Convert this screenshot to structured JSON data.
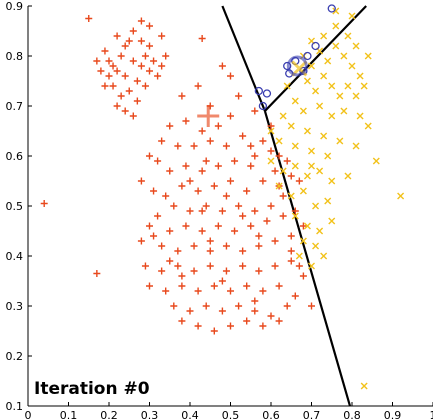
{
  "chart_data": {
    "type": "scatter",
    "title": "",
    "annotation": "Iteration #0",
    "xlabel": "",
    "ylabel": "",
    "xlim": [
      0.0,
      1.0
    ],
    "ylim": [
      0.1,
      0.9
    ],
    "xticks": [
      0.0,
      0.1,
      0.2,
      0.3,
      0.4,
      0.5,
      0.6,
      0.7,
      0.8,
      0.9,
      1.0
    ],
    "yticks": [
      0.1,
      0.2,
      0.3,
      0.4,
      0.5,
      0.6,
      0.7,
      0.8,
      0.9
    ],
    "xtick_labels": [
      "0",
      "0.1",
      "0.2",
      "0.3",
      "0.4",
      "0.5",
      "0.6",
      "0.7",
      "0.8",
      "0.9",
      "1"
    ],
    "ytick_labels": [
      "0.1",
      "0.2",
      "0.3",
      "0.4",
      "0.5",
      "0.6",
      "0.7",
      "0.8",
      "0.9"
    ],
    "grid": false,
    "colors": {
      "cluster1": "#e8491d",
      "cluster2": "#f2c21b",
      "cluster3": "#3b3fb0",
      "boundary": "#000000"
    },
    "series": [
      {
        "marker": "plus",
        "color": "#e8491d",
        "centroid": [
          0.445,
          0.68
        ],
        "points": [
          [
            0.15,
            0.875
          ],
          [
            0.19,
            0.81
          ],
          [
            0.2,
            0.79
          ],
          [
            0.21,
            0.78
          ],
          [
            0.22,
            0.77
          ],
          [
            0.23,
            0.8
          ],
          [
            0.24,
            0.76
          ],
          [
            0.25,
            0.83
          ],
          [
            0.26,
            0.79
          ],
          [
            0.27,
            0.75
          ],
          [
            0.28,
            0.78
          ],
          [
            0.29,
            0.8
          ],
          [
            0.3,
            0.77
          ],
          [
            0.31,
            0.79
          ],
          [
            0.22,
            0.84
          ],
          [
            0.24,
            0.82
          ],
          [
            0.26,
            0.85
          ],
          [
            0.28,
            0.83
          ],
          [
            0.3,
            0.82
          ],
          [
            0.21,
            0.74
          ],
          [
            0.23,
            0.72
          ],
          [
            0.25,
            0.73
          ],
          [
            0.27,
            0.71
          ],
          [
            0.2,
            0.76
          ],
          [
            0.32,
            0.76
          ],
          [
            0.33,
            0.78
          ],
          [
            0.18,
            0.77
          ],
          [
            0.17,
            0.79
          ],
          [
            0.29,
            0.74
          ],
          [
            0.24,
            0.69
          ],
          [
            0.3,
            0.86
          ],
          [
            0.28,
            0.87
          ],
          [
            0.33,
            0.84
          ],
          [
            0.34,
            0.8
          ],
          [
            0.19,
            0.74
          ],
          [
            0.22,
            0.7
          ],
          [
            0.26,
            0.68
          ],
          [
            0.43,
            0.835
          ],
          [
            0.48,
            0.78
          ],
          [
            0.5,
            0.76
          ],
          [
            0.42,
            0.74
          ],
          [
            0.38,
            0.72
          ],
          [
            0.45,
            0.7
          ],
          [
            0.52,
            0.72
          ],
          [
            0.5,
            0.68
          ],
          [
            0.47,
            0.66
          ],
          [
            0.43,
            0.65
          ],
          [
            0.39,
            0.67
          ],
          [
            0.35,
            0.66
          ],
          [
            0.33,
            0.63
          ],
          [
            0.37,
            0.62
          ],
          [
            0.41,
            0.62
          ],
          [
            0.45,
            0.63
          ],
          [
            0.49,
            0.62
          ],
          [
            0.53,
            0.64
          ],
          [
            0.55,
            0.62
          ],
          [
            0.58,
            0.63
          ],
          [
            0.6,
            0.61
          ],
          [
            0.62,
            0.6
          ],
          [
            0.64,
            0.59
          ],
          [
            0.55,
            0.58
          ],
          [
            0.51,
            0.59
          ],
          [
            0.47,
            0.58
          ],
          [
            0.43,
            0.57
          ],
          [
            0.39,
            0.58
          ],
          [
            0.35,
            0.57
          ],
          [
            0.32,
            0.59
          ],
          [
            0.3,
            0.6
          ],
          [
            0.28,
            0.55
          ],
          [
            0.31,
            0.53
          ],
          [
            0.34,
            0.52
          ],
          [
            0.38,
            0.54
          ],
          [
            0.42,
            0.53
          ],
          [
            0.46,
            0.54
          ],
          [
            0.5,
            0.55
          ],
          [
            0.54,
            0.53
          ],
          [
            0.58,
            0.55
          ],
          [
            0.62,
            0.54
          ],
          [
            0.65,
            0.56
          ],
          [
            0.67,
            0.55
          ],
          [
            0.6,
            0.5
          ],
          [
            0.56,
            0.49
          ],
          [
            0.52,
            0.5
          ],
          [
            0.48,
            0.49
          ],
          [
            0.44,
            0.5
          ],
          [
            0.4,
            0.49
          ],
          [
            0.36,
            0.5
          ],
          [
            0.32,
            0.48
          ],
          [
            0.3,
            0.46
          ],
          [
            0.35,
            0.45
          ],
          [
            0.39,
            0.46
          ],
          [
            0.43,
            0.45
          ],
          [
            0.47,
            0.46
          ],
          [
            0.51,
            0.45
          ],
          [
            0.55,
            0.46
          ],
          [
            0.59,
            0.47
          ],
          [
            0.63,
            0.48
          ],
          [
            0.66,
            0.49
          ],
          [
            0.28,
            0.43
          ],
          [
            0.33,
            0.42
          ],
          [
            0.37,
            0.41
          ],
          [
            0.41,
            0.42
          ],
          [
            0.45,
            0.41
          ],
          [
            0.49,
            0.42
          ],
          [
            0.53,
            0.41
          ],
          [
            0.57,
            0.42
          ],
          [
            0.61,
            0.43
          ],
          [
            0.65,
            0.44
          ],
          [
            0.68,
            0.46
          ],
          [
            0.29,
            0.38
          ],
          [
            0.33,
            0.37
          ],
          [
            0.37,
            0.38
          ],
          [
            0.41,
            0.37
          ],
          [
            0.45,
            0.38
          ],
          [
            0.49,
            0.37
          ],
          [
            0.53,
            0.38
          ],
          [
            0.57,
            0.37
          ],
          [
            0.61,
            0.38
          ],
          [
            0.65,
            0.39
          ],
          [
            0.68,
            0.36
          ],
          [
            0.3,
            0.34
          ],
          [
            0.34,
            0.33
          ],
          [
            0.38,
            0.34
          ],
          [
            0.42,
            0.33
          ],
          [
            0.46,
            0.34
          ],
          [
            0.5,
            0.33
          ],
          [
            0.54,
            0.34
          ],
          [
            0.58,
            0.33
          ],
          [
            0.62,
            0.34
          ],
          [
            0.66,
            0.32
          ],
          [
            0.7,
            0.3
          ],
          [
            0.36,
            0.3
          ],
          [
            0.4,
            0.29
          ],
          [
            0.44,
            0.3
          ],
          [
            0.48,
            0.29
          ],
          [
            0.52,
            0.3
          ],
          [
            0.56,
            0.29
          ],
          [
            0.6,
            0.28
          ],
          [
            0.64,
            0.3
          ],
          [
            0.42,
            0.26
          ],
          [
            0.46,
            0.25
          ],
          [
            0.5,
            0.26
          ],
          [
            0.54,
            0.27
          ],
          [
            0.58,
            0.26
          ],
          [
            0.62,
            0.27
          ],
          [
            0.38,
            0.27
          ],
          [
            0.04,
            0.505
          ],
          [
            0.17,
            0.365
          ],
          [
            0.38,
            0.36
          ],
          [
            0.4,
            0.55
          ],
          [
            0.44,
            0.59
          ],
          [
            0.56,
            0.6
          ],
          [
            0.61,
            0.57
          ],
          [
            0.63,
            0.52
          ],
          [
            0.53,
            0.48
          ],
          [
            0.57,
            0.44
          ],
          [
            0.45,
            0.43
          ],
          [
            0.35,
            0.39
          ],
          [
            0.31,
            0.44
          ],
          [
            0.43,
            0.49
          ],
          [
            0.49,
            0.52
          ],
          [
            0.65,
            0.41
          ],
          [
            0.67,
            0.38
          ],
          [
            0.56,
            0.31
          ],
          [
            0.48,
            0.35
          ],
          [
            0.6,
            0.66
          ],
          [
            0.56,
            0.69
          ]
        ]
      },
      {
        "marker": "x",
        "color": "#f2c21b",
        "centroid": [
          0.67,
          0.775
        ],
        "points": [
          [
            0.68,
            0.8
          ],
          [
            0.7,
            0.78
          ],
          [
            0.72,
            0.81
          ],
          [
            0.74,
            0.79
          ],
          [
            0.76,
            0.82
          ],
          [
            0.78,
            0.8
          ],
          [
            0.8,
            0.78
          ],
          [
            0.82,
            0.76
          ],
          [
            0.69,
            0.75
          ],
          [
            0.71,
            0.73
          ],
          [
            0.73,
            0.76
          ],
          [
            0.75,
            0.74
          ],
          [
            0.77,
            0.72
          ],
          [
            0.79,
            0.74
          ],
          [
            0.81,
            0.72
          ],
          [
            0.83,
            0.74
          ],
          [
            0.7,
            0.83
          ],
          [
            0.73,
            0.84
          ],
          [
            0.76,
            0.86
          ],
          [
            0.79,
            0.84
          ],
          [
            0.81,
            0.82
          ],
          [
            0.84,
            0.8
          ],
          [
            0.8,
            0.88
          ],
          [
            0.76,
            0.89
          ],
          [
            0.64,
            0.74
          ],
          [
            0.66,
            0.71
          ],
          [
            0.68,
            0.69
          ],
          [
            0.72,
            0.7
          ],
          [
            0.75,
            0.68
          ],
          [
            0.78,
            0.69
          ],
          [
            0.82,
            0.68
          ],
          [
            0.84,
            0.66
          ],
          [
            0.63,
            0.68
          ],
          [
            0.65,
            0.66
          ],
          [
            0.69,
            0.65
          ],
          [
            0.73,
            0.64
          ],
          [
            0.77,
            0.63
          ],
          [
            0.81,
            0.62
          ],
          [
            0.6,
            0.65
          ],
          [
            0.62,
            0.63
          ],
          [
            0.66,
            0.62
          ],
          [
            0.7,
            0.61
          ],
          [
            0.74,
            0.6
          ],
          [
            0.86,
            0.59
          ],
          [
            0.6,
            0.59
          ],
          [
            0.63,
            0.57
          ],
          [
            0.66,
            0.58
          ],
          [
            0.69,
            0.56
          ],
          [
            0.72,
            0.57
          ],
          [
            0.75,
            0.55
          ],
          [
            0.79,
            0.56
          ],
          [
            0.62,
            0.54
          ],
          [
            0.65,
            0.52
          ],
          [
            0.68,
            0.53
          ],
          [
            0.71,
            0.5
          ],
          [
            0.74,
            0.51
          ],
          [
            0.66,
            0.48
          ],
          [
            0.69,
            0.46
          ],
          [
            0.72,
            0.45
          ],
          [
            0.75,
            0.47
          ],
          [
            0.68,
            0.43
          ],
          [
            0.71,
            0.42
          ],
          [
            0.73,
            0.4
          ],
          [
            0.92,
            0.52
          ],
          [
            0.83,
            0.14
          ],
          [
            0.7,
            0.38
          ],
          [
            0.67,
            0.4
          ],
          [
            0.7,
            0.58
          ]
        ]
      },
      {
        "marker": "circle",
        "color": "#3b3fb0",
        "centroid": [
          0.665,
          0.78
        ],
        "points": [
          [
            0.75,
            0.895
          ],
          [
            0.71,
            0.82
          ],
          [
            0.69,
            0.8
          ],
          [
            0.66,
            0.79
          ],
          [
            0.64,
            0.78
          ],
          [
            0.68,
            0.77
          ],
          [
            0.645,
            0.765
          ],
          [
            0.57,
            0.73
          ],
          [
            0.59,
            0.725
          ],
          [
            0.58,
            0.7
          ]
        ]
      }
    ],
    "boundaries": [
      [
        [
          0.48,
          0.9
        ],
        [
          0.585,
          0.69
        ]
      ],
      [
        [
          0.585,
          0.69
        ],
        [
          0.835,
          0.9
        ]
      ],
      [
        [
          0.585,
          0.69
        ],
        [
          0.795,
          0.1
        ]
      ]
    ]
  }
}
